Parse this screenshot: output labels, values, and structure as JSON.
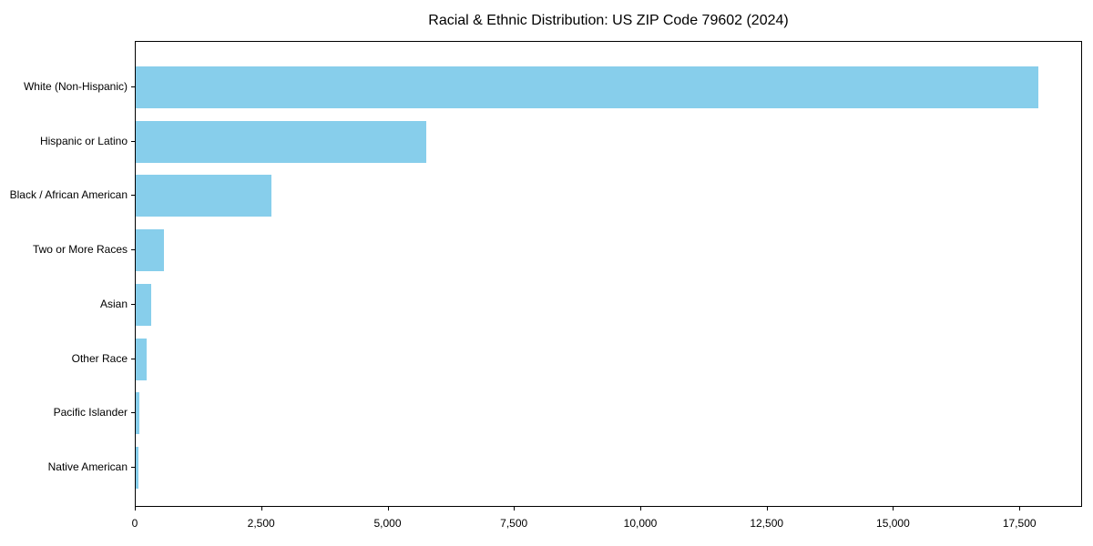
{
  "title": "Racial & Ethnic Distribution: US ZIP Code 79602 (2024)",
  "chart_data": {
    "type": "bar",
    "orientation": "horizontal",
    "title": "Racial & Ethnic Distribution: US ZIP Code 79602 (2024)",
    "categories": [
      "White (Non-Hispanic)",
      "Hispanic or Latino",
      "Black / African American",
      "Two or More Races",
      "Asian",
      "Other Race",
      "Pacific Islander",
      "Native American"
    ],
    "values": [
      17850,
      5750,
      2680,
      565,
      310,
      220,
      80,
      45
    ],
    "xlabel": "",
    "ylabel": "",
    "xlim": [
      0,
      18740
    ],
    "xticks": {
      "values": [
        0,
        2500,
        5000,
        7500,
        10000,
        12500,
        15000,
        17500
      ],
      "labels": [
        "0",
        "2,500",
        "5,000",
        "7,500",
        "10,000",
        "12,500",
        "15,000",
        "17,500"
      ]
    },
    "bar_color": "#87CEEB",
    "grid": false,
    "legend": null
  }
}
